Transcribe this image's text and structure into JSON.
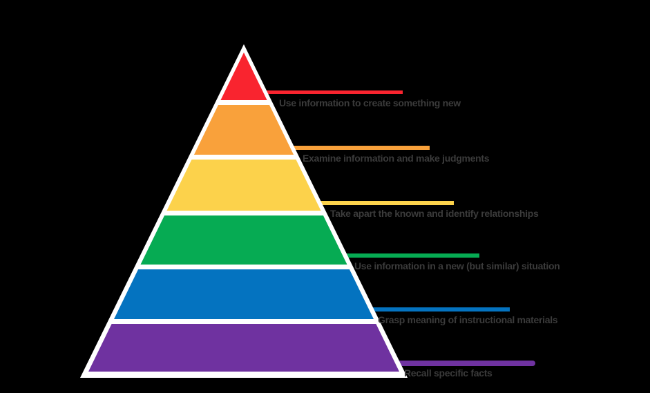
{
  "diagram": {
    "background_color": "#000000",
    "outline_color": "#FFFFFF",
    "label_color": "#3B3B3B",
    "levels": [
      {
        "label": "Use information to create something new",
        "color": "#F9242F"
      },
      {
        "label": "Examine information and make judgments",
        "color": "#F9A13B"
      },
      {
        "label": "Take apart the known and identify relationships",
        "color": "#FCD24B"
      },
      {
        "label": "Use information in a new (but similar) situation",
        "color": "#06AB53"
      },
      {
        "label": "Grasp meaning of instructional materials",
        "color": "#0473C0"
      },
      {
        "label": "Recall specific facts",
        "color": "#6F32A0"
      }
    ]
  }
}
